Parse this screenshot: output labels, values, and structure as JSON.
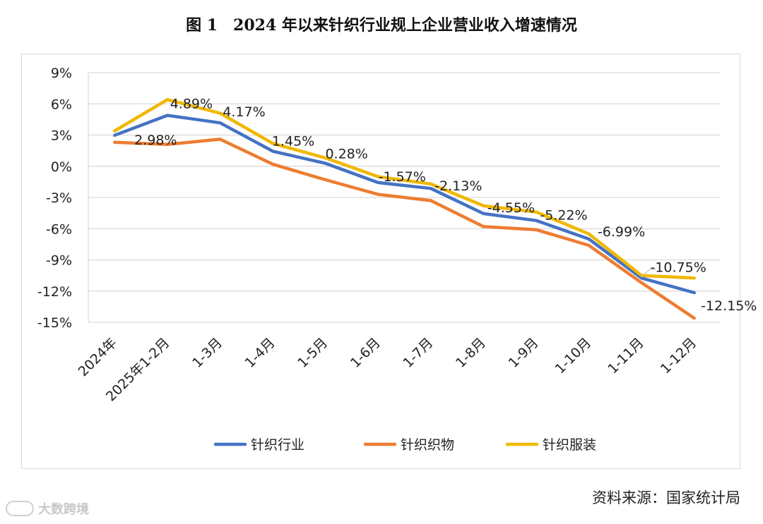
{
  "title": "图 1　2024 年以来针织行业规上企业营业收入增速情况",
  "source": "资料来源：国家统计局",
  "watermark": "大数跨境",
  "chart_data": {
    "type": "line",
    "title": "图 1　2024 年以来针织行业规上企业营业收入增速情况",
    "xlabel": "",
    "ylabel": "",
    "categories": [
      "2024年",
      "2025年1-2月",
      "1-3月",
      "1-4月",
      "1-5月",
      "1-6月",
      "1-7月",
      "1-8月",
      "1-9月",
      "1-10月",
      "1-11月",
      "1-12月"
    ],
    "ylim": [
      -15,
      9
    ],
    "yticks": [
      9,
      6,
      3,
      0,
      -3,
      -6,
      -9,
      -12,
      -15
    ],
    "ytick_labels": [
      "9%",
      "6%",
      "3%",
      "0%",
      "-3%",
      "-6%",
      "-9%",
      "-12%",
      "-15%"
    ],
    "grid": true,
    "legend": "bottom",
    "series": [
      {
        "name": "针织行业",
        "color": "#4472C4",
        "values": [
          2.98,
          4.89,
          4.17,
          1.45,
          0.28,
          -1.57,
          -2.13,
          -4.55,
          -5.22,
          -6.99,
          -10.75,
          -12.15
        ]
      },
      {
        "name": "针织织物",
        "color": "#ED7D31",
        "values": [
          2.3,
          2.1,
          2.6,
          0.2,
          -1.3,
          -2.7,
          -3.3,
          -5.8,
          -6.1,
          -7.6,
          -11.2,
          -14.6
        ]
      },
      {
        "name": "针织服装",
        "color": "#F0B800",
        "values": [
          3.4,
          6.4,
          5.1,
          2.2,
          0.8,
          -1.0,
          -1.7,
          -3.8,
          -4.4,
          -6.5,
          -10.5,
          -10.75
        ]
      }
    ],
    "data_labels": [
      {
        "category": "2024年",
        "text": "2.98%"
      },
      {
        "category": "2025年1-2月",
        "text": "4.89%"
      },
      {
        "category": "1-3月",
        "text": "4.17%"
      },
      {
        "category": "1-4月",
        "text": "1.45%"
      },
      {
        "category": "1-5月",
        "text": "0.28%"
      },
      {
        "category": "1-6月",
        "text": "-1.57%"
      },
      {
        "category": "1-7月",
        "text": "-2.13%"
      },
      {
        "category": "1-8月",
        "text": "-4.55%"
      },
      {
        "category": "1-9月",
        "text": "-5.22%"
      },
      {
        "category": "1-10月",
        "text": "-6.99%"
      },
      {
        "category": "1-11月",
        "text": "-10.75%"
      },
      {
        "category": "1-12月",
        "text": "-12.15%"
      }
    ]
  }
}
